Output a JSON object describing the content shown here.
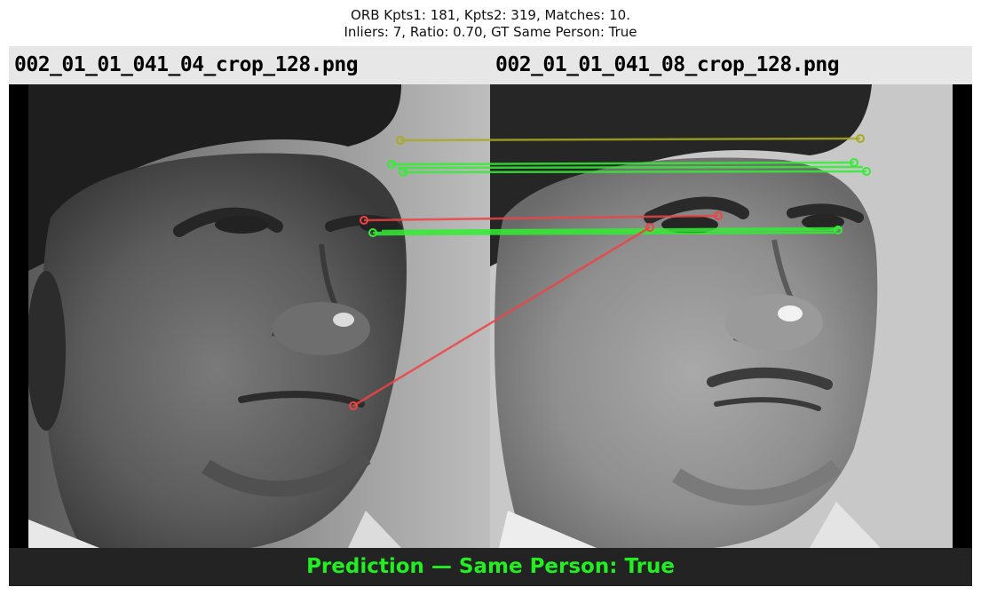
{
  "title": {
    "line1": "ORB Kpts1: 181, Kpts2: 319, Matches: 10.",
    "line2": "Inliers: 7, Ratio: 0.70, GT Same Person: True"
  },
  "images": {
    "left_filename": "002_01_01_041_04_crop_128.png",
    "right_filename": "002_01_01_041_08_crop_128.png"
  },
  "prediction": {
    "label": "Prediction — Same Person: True",
    "color": "#22ee22"
  },
  "match_colors": {
    "inlier": "#33ee33",
    "outlier": "#ee4444",
    "ambiguous": "#aaaa22"
  }
}
